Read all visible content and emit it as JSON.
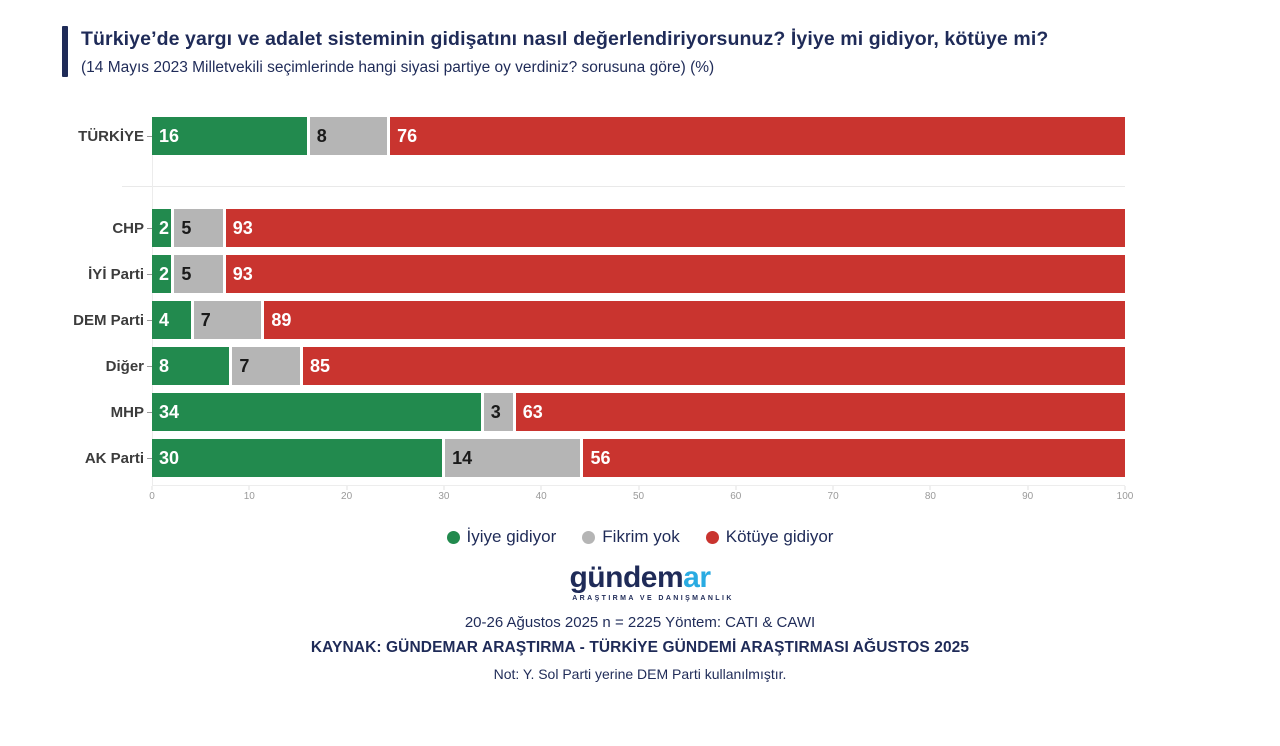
{
  "header": {
    "title": "Türkiye’de yargı ve adalet sisteminin gidişatını nasıl değerlendiriyorsunuz? İyiye mi gidiyor, kötüye mi?",
    "subtitle": "(14 Mayıs 2023 Milletvekili seçimlerinde hangi siyasi partiye oy verdiniz? sorusuna göre) (%)",
    "accent_color": "#1f2b58"
  },
  "chart_data": {
    "type": "bar",
    "orientation": "horizontal",
    "stacked": true,
    "categories": [
      "TÜRKİYE",
      "CHP",
      "İYİ Parti",
      "DEM Parti",
      "Diğer",
      "MHP",
      "AK Parti"
    ],
    "gap_after_index": 0,
    "series": [
      {
        "name": "İyiye gidiyor",
        "color": "#228a4e",
        "label_color": "#ffffff",
        "values": [
          16,
          2,
          2,
          4,
          8,
          34,
          30
        ]
      },
      {
        "name": "Fikrim yok",
        "color": "#b5b5b5",
        "label_color": "#1a1a1a",
        "values": [
          8,
          5,
          5,
          7,
          7,
          3,
          14
        ]
      },
      {
        "name": "Kötüye gidiyor",
        "color": "#c9342f",
        "label_color": "#ffffff",
        "values": [
          76,
          93,
          93,
          89,
          85,
          63,
          56
        ]
      }
    ],
    "xlim": [
      0,
      100
    ],
    "x_ticks": [
      0,
      10,
      20,
      30,
      40,
      50,
      60,
      70,
      80,
      90,
      100
    ],
    "grid": "minimal",
    "legend_position": "bottom"
  },
  "footer": {
    "logo": {
      "text_primary": "gündem",
      "text_accent": "ar",
      "accent_color": "#29abe2",
      "tagline": "ARAŞTIRMA VE DANIŞMANLIK"
    },
    "method_line": "20-26 Ağustos 2025 n = 2225 Yöntem: CATI & CAWI",
    "source_line": "KAYNAK: GÜNDEMAR ARAŞTIRMA - TÜRKİYE GÜNDEMİ ARAŞTIRMASI AĞUSTOS 2025",
    "note_line": "Not: Y. Sol Parti yerine DEM Parti kullanılmıştır."
  }
}
